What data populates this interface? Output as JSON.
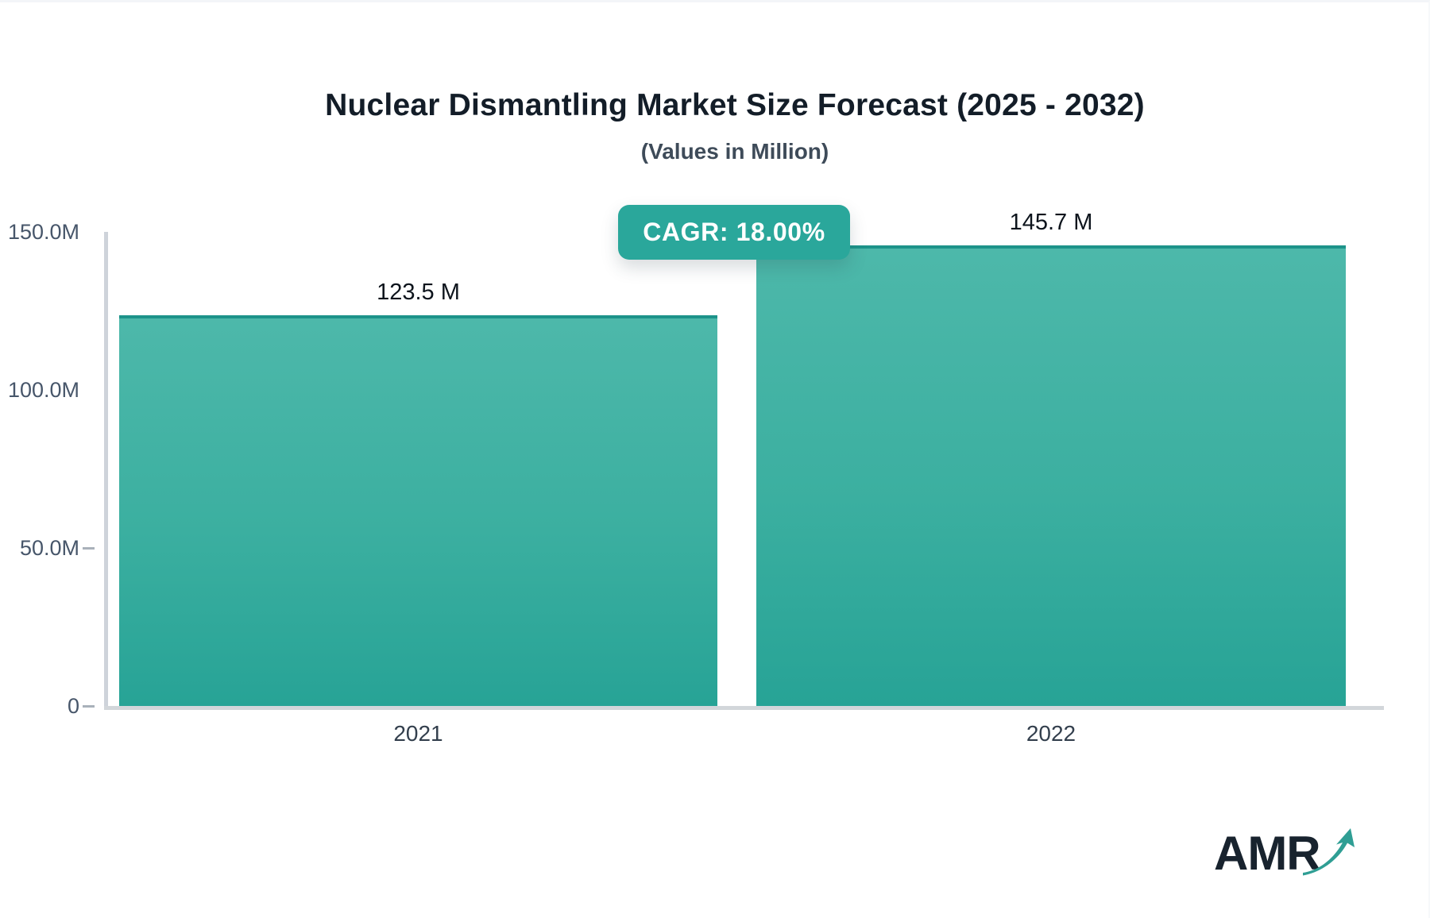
{
  "header": {
    "title": "Nuclear Dismantling Market Size Forecast (2025 - 2032)",
    "subtitle": "(Values in Million)"
  },
  "cagr_badge": {
    "label": "CAGR: 18.00%"
  },
  "logo": {
    "text": "AMR"
  },
  "colors": {
    "accent_teal": "#2aa79b",
    "bar_gradient_top": "#4db8aa",
    "bar_gradient_bottom": "#27a396",
    "bar_top_border": "#1d938a",
    "axis_line": "#ced3da",
    "title_text": "#131d28",
    "subtitle_text": "#3e4b59",
    "tick_text": "#47566a",
    "category_text": "#333f4d",
    "value_label_text": "#0d141c",
    "logo_navy": "#18232e",
    "logo_arrow_teal": "#2f9e94"
  },
  "chart_data": {
    "type": "bar",
    "title": "Nuclear Dismantling Market Size Forecast (2025 - 2032)",
    "subtitle": "(Values in Million)",
    "cagr": "18.00%",
    "categories": [
      "2021",
      "2022"
    ],
    "values": [
      123.5,
      145.7
    ],
    "value_labels": [
      "123.5 M",
      "145.7 M"
    ],
    "xlabel": "",
    "ylabel": "",
    "ylim": [
      0,
      150
    ],
    "yticks": [
      {
        "label": "150.0M",
        "value": 150,
        "dash": false
      },
      {
        "label": "100.0M",
        "value": 100,
        "dash": false
      },
      {
        "label": "50.0M",
        "value": 50,
        "dash": true
      },
      {
        "label": "0",
        "value": 0,
        "dash": true
      }
    ],
    "grid": false,
    "legend": false
  }
}
